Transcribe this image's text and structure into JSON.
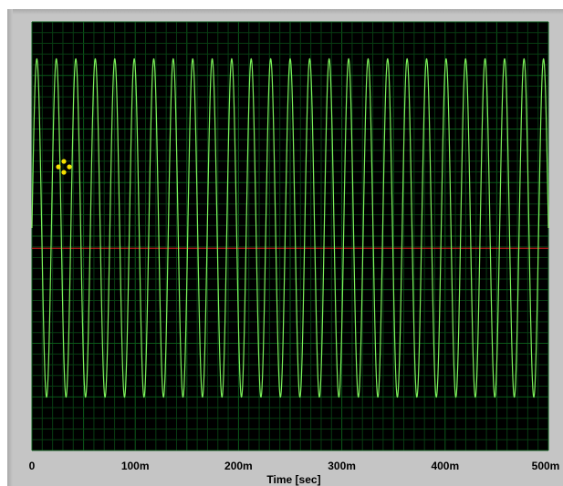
{
  "colors": {
    "panel": "#c5c5c5",
    "plot_background": "#000000",
    "major_grid": "#0b5a1a",
    "minor_grid": "#083c12",
    "signal": "#7cf05a",
    "cursor_line": "#e02020",
    "cursor_marker": "#f5e000"
  },
  "cursor": {
    "icon": "crosshair-cursor-icon"
  },
  "chart_data": {
    "type": "line",
    "title": "",
    "xlabel": "Time [sec]",
    "ylabel": "",
    "xlim": [
      0,
      0.5
    ],
    "ylim": [
      -1.1,
      1.1
    ],
    "grid": true,
    "legend": "none",
    "x_ticks": [
      {
        "value": 0,
        "label": "0"
      },
      {
        "value": 0.1,
        "label": "100m"
      },
      {
        "value": 0.2,
        "label": "200m"
      },
      {
        "value": 0.3,
        "label": "300m"
      },
      {
        "value": 0.4,
        "label": "400m"
      },
      {
        "value": 0.5,
        "label": "500m"
      }
    ],
    "series": [
      {
        "function": "sine",
        "amplitude": 1.0,
        "frequency_hz": 53,
        "phase_rad": 0,
        "offset": 0
      }
    ],
    "horizontal_cursor_y": -0.12
  }
}
